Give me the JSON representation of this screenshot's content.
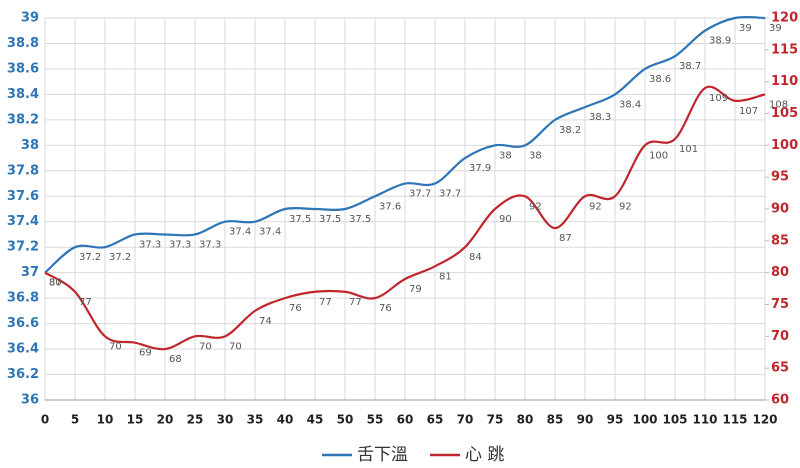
{
  "chart_data": {
    "type": "line",
    "x": [
      0,
      5,
      10,
      15,
      20,
      25,
      30,
      35,
      40,
      45,
      50,
      55,
      60,
      65,
      70,
      75,
      80,
      85,
      90,
      95,
      100,
      105,
      110,
      115,
      120
    ],
    "xlim": [
      0,
      120
    ],
    "xticks": [
      0,
      5,
      10,
      15,
      20,
      25,
      30,
      35,
      40,
      45,
      50,
      55,
      60,
      65,
      70,
      75,
      80,
      85,
      90,
      95,
      100,
      105,
      110,
      115,
      120
    ],
    "ylim": [
      36,
      39
    ],
    "yticks": [
      36,
      36.2,
      36.4,
      36.6,
      36.8,
      37,
      37.2,
      37.4,
      37.6,
      37.8,
      38,
      38.2,
      38.4,
      38.6,
      38.8,
      39
    ],
    "y2lim": [
      60,
      120
    ],
    "y2ticks": [
      60,
      65,
      70,
      75,
      80,
      85,
      90,
      95,
      100,
      105,
      110,
      115,
      120
    ],
    "grid": true,
    "legend": "bottom",
    "series": [
      {
        "name": "舌下溫",
        "color": "#2e75b6",
        "values": [
          37,
          37.2,
          37.2,
          37.3,
          37.3,
          37.3,
          37.4,
          37.4,
          37.5,
          37.5,
          37.5,
          37.6,
          37.7,
          37.7,
          37.9,
          38,
          38,
          38.2,
          38.3,
          38.4,
          38.6,
          38.7,
          38.9,
          39,
          39
        ]
      },
      {
        "name": "心 跳",
        "color": "#c0262d",
        "axis": "y2",
        "values": [
          80,
          77,
          70,
          69,
          68,
          70,
          70,
          74,
          76,
          77,
          77,
          76,
          79,
          81,
          84,
          90,
          92,
          87,
          92,
          92,
          100,
          101,
          109,
          107,
          108
        ]
      }
    ]
  }
}
